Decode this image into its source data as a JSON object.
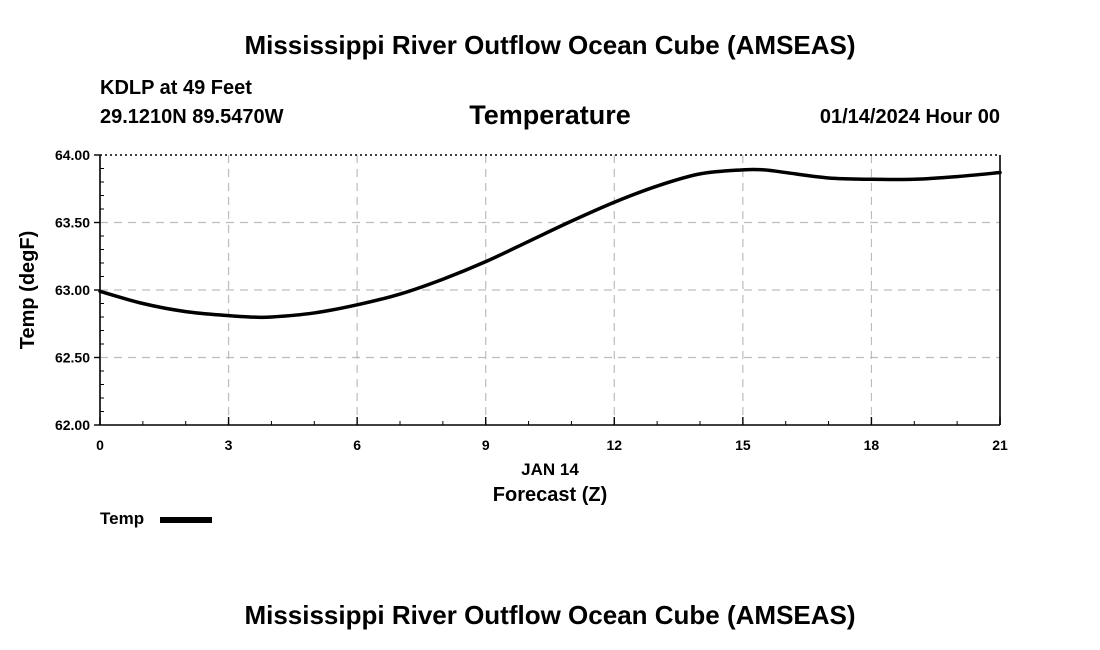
{
  "header": {
    "title": "Mississippi River Outflow Ocean Cube (AMSEAS)",
    "station": "KDLP at 49 Feet",
    "coords": "29.1210N  89.5470W",
    "datetime": "01/14/2024 Hour 00"
  },
  "footer": {
    "title": "Mississippi River Outflow Ocean Cube (AMSEAS)"
  },
  "legend": {
    "label": "Temp"
  },
  "chart_data": {
    "type": "line",
    "title": "Temperature",
    "xlabel": "Forecast (Z)",
    "xdate_label": "JAN 14",
    "ylabel": "Temp (degF)",
    "xlim": [
      0,
      21
    ],
    "ylim": [
      62.0,
      64.0
    ],
    "xticks": [
      0,
      3,
      6,
      9,
      12,
      15,
      18,
      21
    ],
    "yticks": [
      62.0,
      62.5,
      63.0,
      63.5,
      64.0
    ],
    "ytick_labels": [
      "62.00",
      "62.50",
      "63.00",
      "63.50",
      "64.00"
    ],
    "grid": true,
    "series": [
      {
        "name": "Temp",
        "color": "#000000",
        "x": [
          0,
          1,
          2,
          3,
          3.5,
          4,
          5,
          6,
          7,
          8,
          9,
          10,
          11,
          12,
          13,
          14,
          15,
          15.5,
          16,
          17,
          18,
          19,
          20,
          21
        ],
        "values": [
          62.99,
          62.9,
          62.84,
          62.81,
          62.8,
          62.8,
          62.83,
          62.89,
          62.97,
          63.08,
          63.21,
          63.36,
          63.51,
          63.65,
          63.77,
          63.86,
          63.89,
          63.89,
          63.87,
          63.83,
          63.82,
          63.82,
          63.84,
          63.87
        ]
      }
    ]
  }
}
